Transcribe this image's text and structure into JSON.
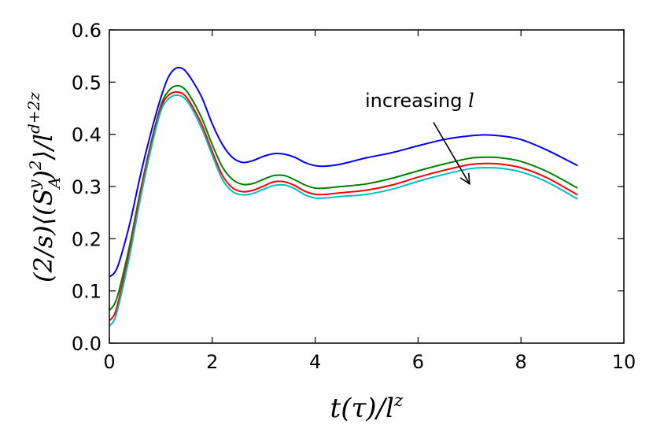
{
  "chart_data": {
    "type": "line",
    "title": "",
    "xlabel": "t(τ)/l^z",
    "ylabel": "(2/s)⟨(S_A^y)^2⟩/l^(d+2z)",
    "xlim": [
      0,
      10
    ],
    "ylim": [
      0.0,
      0.6
    ],
    "xticks": [
      0,
      2,
      4,
      6,
      8,
      10
    ],
    "xtick_labels": [
      "0",
      "2",
      "4",
      "6",
      "8",
      "10"
    ],
    "yticks": [
      0.0,
      0.1,
      0.2,
      0.3,
      0.4,
      0.5,
      0.6
    ],
    "ytick_labels": [
      "0.0",
      "0.1",
      "0.2",
      "0.3",
      "0.4",
      "0.5",
      "0.6"
    ],
    "grid": false,
    "annotation": {
      "text": "increasing ",
      "symbol": "l",
      "arrow_from": [
        6.3,
        0.423
      ],
      "arrow_to": [
        7.0,
        0.305
      ]
    },
    "series": [
      {
        "name": "series-1",
        "color": "#0000ff",
        "x": [
          0,
          0.1,
          0.2,
          0.4,
          0.6,
          0.8,
          1.0,
          1.15,
          1.3,
          1.45,
          1.6,
          1.8,
          2.0,
          2.2,
          2.4,
          2.6,
          2.8,
          3.0,
          3.2,
          3.4,
          3.6,
          3.8,
          4.0,
          4.2,
          4.5,
          5.0,
          5.5,
          6.0,
          6.5,
          7.0,
          7.3,
          7.6,
          8.0,
          8.5,
          9.1
        ],
        "y": [
          0.127,
          0.135,
          0.158,
          0.23,
          0.32,
          0.4,
          0.47,
          0.51,
          0.527,
          0.524,
          0.505,
          0.47,
          0.42,
          0.38,
          0.355,
          0.346,
          0.35,
          0.358,
          0.363,
          0.362,
          0.356,
          0.346,
          0.34,
          0.339,
          0.343,
          0.355,
          0.365,
          0.378,
          0.39,
          0.397,
          0.399,
          0.397,
          0.39,
          0.37,
          0.34
        ]
      },
      {
        "name": "series-2",
        "color": "#008000",
        "x": [
          0,
          0.1,
          0.2,
          0.4,
          0.6,
          0.8,
          1.0,
          1.15,
          1.3,
          1.45,
          1.6,
          1.8,
          2.0,
          2.2,
          2.4,
          2.6,
          2.8,
          3.0,
          3.2,
          3.4,
          3.6,
          3.8,
          4.0,
          4.2,
          4.5,
          5.0,
          5.5,
          6.0,
          6.5,
          7.0,
          7.3,
          7.6,
          8.0,
          8.5,
          9.1
        ],
        "y": [
          0.063,
          0.075,
          0.105,
          0.19,
          0.29,
          0.38,
          0.455,
          0.483,
          0.493,
          0.488,
          0.468,
          0.43,
          0.38,
          0.337,
          0.313,
          0.304,
          0.306,
          0.314,
          0.321,
          0.321,
          0.313,
          0.303,
          0.297,
          0.297,
          0.3,
          0.305,
          0.316,
          0.33,
          0.343,
          0.354,
          0.356,
          0.355,
          0.348,
          0.329,
          0.297
        ]
      },
      {
        "name": "series-3",
        "color": "#ff0000",
        "x": [
          0,
          0.1,
          0.2,
          0.4,
          0.6,
          0.8,
          1.0,
          1.15,
          1.3,
          1.45,
          1.6,
          1.8,
          2.0,
          2.2,
          2.4,
          2.6,
          2.8,
          3.0,
          3.2,
          3.4,
          3.6,
          3.8,
          4.0,
          4.2,
          4.5,
          5.0,
          5.5,
          6.0,
          6.5,
          7.0,
          7.3,
          7.6,
          8.0,
          8.5,
          9.1
        ],
        "y": [
          0.043,
          0.055,
          0.09,
          0.18,
          0.285,
          0.375,
          0.45,
          0.475,
          0.481,
          0.476,
          0.456,
          0.418,
          0.367,
          0.321,
          0.297,
          0.29,
          0.293,
          0.301,
          0.309,
          0.309,
          0.302,
          0.291,
          0.285,
          0.285,
          0.288,
          0.293,
          0.303,
          0.318,
          0.331,
          0.342,
          0.344,
          0.343,
          0.336,
          0.317,
          0.284
        ]
      },
      {
        "name": "series-4",
        "color": "#00bfbf",
        "x": [
          0,
          0.1,
          0.2,
          0.4,
          0.6,
          0.8,
          1.0,
          1.15,
          1.3,
          1.45,
          1.6,
          1.8,
          2.0,
          2.2,
          2.4,
          2.6,
          2.8,
          3.0,
          3.2,
          3.4,
          3.6,
          3.8,
          4.0,
          4.2,
          4.5,
          5.0,
          5.5,
          6.0,
          6.5,
          7.0,
          7.3,
          7.6,
          8.0,
          8.5,
          9.1
        ],
        "y": [
          0.033,
          0.045,
          0.08,
          0.17,
          0.275,
          0.368,
          0.444,
          0.468,
          0.475,
          0.47,
          0.45,
          0.41,
          0.36,
          0.313,
          0.29,
          0.284,
          0.287,
          0.295,
          0.302,
          0.303,
          0.296,
          0.284,
          0.278,
          0.278,
          0.281,
          0.285,
          0.295,
          0.31,
          0.323,
          0.334,
          0.336,
          0.335,
          0.328,
          0.309,
          0.276
        ]
      }
    ]
  }
}
